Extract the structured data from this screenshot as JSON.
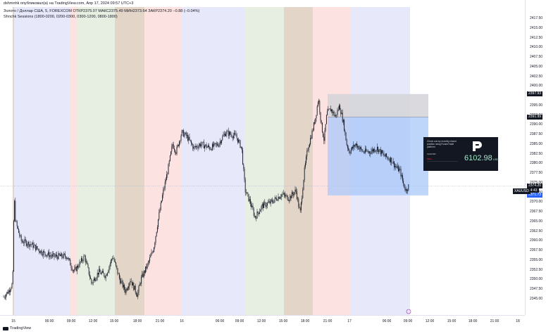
{
  "header": {
    "title_line": "dshmnhk опубликовал(а) на TradingView.com, Апр 17, 2024 09:57 UTC+3",
    "symbol_line": "Золото / Доллар США, 5, FOREXCOM  ОТКР2375.07  МАКС2375.49  МИН2373.64  ЗАКР2374.20  −0.88 (−0.04%)",
    "indicator_line": "Shnchk Sessions (1800-0200, 0200-0300, 0300-1200, 0800-1800)"
  },
  "price_axis": {
    "ticks": [
      "2417.50",
      "2415.00",
      "2412.50",
      "2410.00",
      "2407.50",
      "2405.00",
      "2402.50",
      "2400.00",
      "2397.50",
      "2395.00",
      "2392.50",
      "2390.00",
      "2387.50",
      "2385.00",
      "2382.50",
      "2380.00",
      "2377.50",
      "2375.00",
      "2372.50",
      "2370.00",
      "2367.50",
      "2365.00",
      "2362.50",
      "2360.00",
      "2357.50",
      "2355.00",
      "2352.50",
      "2350.00",
      "2347.50",
      "2345.00"
    ],
    "tag_stop": "2397.93",
    "tag_entry": "2391.99",
    "tag_current": "2374.20",
    "tag_current_sub": "04:43",
    "tag_target": "2371.73"
  },
  "symbol_label": "XAUUSD",
  "time_axis": {
    "ticks": [
      {
        "label": "15"
      },
      {
        "label": "06:00"
      },
      {
        "label": "09:00"
      },
      {
        "label": "12:00"
      },
      {
        "label": "15:00"
      },
      {
        "label": "18:00"
      },
      {
        "label": "21:00"
      },
      {
        "label": "16"
      },
      {
        "label": "06:00"
      },
      {
        "label": "09:00"
      },
      {
        "label": "12:00"
      },
      {
        "label": "15:00"
      },
      {
        "label": "18:00"
      },
      {
        "label": "21:00"
      },
      {
        "label": "17"
      },
      {
        "label": "06:00"
      },
      {
        "label": "09:00"
      },
      {
        "label": "12:00"
      },
      {
        "label": "15:00"
      },
      {
        "label": "18:00"
      },
      {
        "label": "21:00"
      },
      {
        "label": "18"
      }
    ]
  },
  "branding": {
    "logo_text": "TradingView"
  },
  "ad": {
    "text": "Check out my recently closed position using FusionTrade platform",
    "value": "6102.98",
    "value_unit": "USD",
    "mini_label_1": "XAUUSD",
    "mini_label_2": "SELL"
  },
  "colors": {
    "session_blue": "#e8e8fb",
    "session_pink": "#fde2e2",
    "session_green": "#e6efe2",
    "session_brown": "#e3d5c8",
    "candle": "#131722",
    "stop_zone": "#d3d3d8",
    "profit_zone": "#a8c8f8",
    "tag_red": "#f23645",
    "tag_blue": "#2962ff",
    "tag_dark": "#131722"
  }
}
